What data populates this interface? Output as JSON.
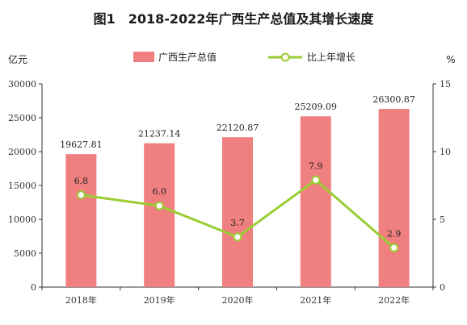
{
  "chart_data": {
    "type": "bar",
    "title": "图1　2018-2022年广西生产总值及其增长速度",
    "categories": [
      "2018年",
      "2019年",
      "2020年",
      "2021年",
      "2022年"
    ],
    "series": [
      {
        "name": "广西生产总值",
        "type": "bar",
        "axis": "left",
        "values": [
          19627.81,
          21237.14,
          22120.87,
          25209.09,
          26300.87
        ],
        "labels": [
          "19627.81",
          "21237.14",
          "22120.87",
          "25209.09",
          "26300.87"
        ],
        "color": "#f08080"
      },
      {
        "name": "比上年增长",
        "type": "line",
        "axis": "right",
        "values": [
          6.8,
          6.0,
          3.7,
          7.9,
          2.9
        ],
        "labels": [
          "6.8",
          "6.0",
          "3.7",
          "7.9",
          "2.9"
        ],
        "color": "#9acd32"
      }
    ],
    "left_axis": {
      "unit": "亿元",
      "ylim": [
        0,
        30000
      ],
      "ticks": [
        "0",
        "5000",
        "10000",
        "15000",
        "20000",
        "25000",
        "30000"
      ]
    },
    "right_axis": {
      "unit": "%",
      "ylim": [
        0,
        15
      ],
      "ticks": [
        "0",
        "5",
        "10",
        "15"
      ]
    },
    "grid": false,
    "legend_position": "top-center"
  }
}
